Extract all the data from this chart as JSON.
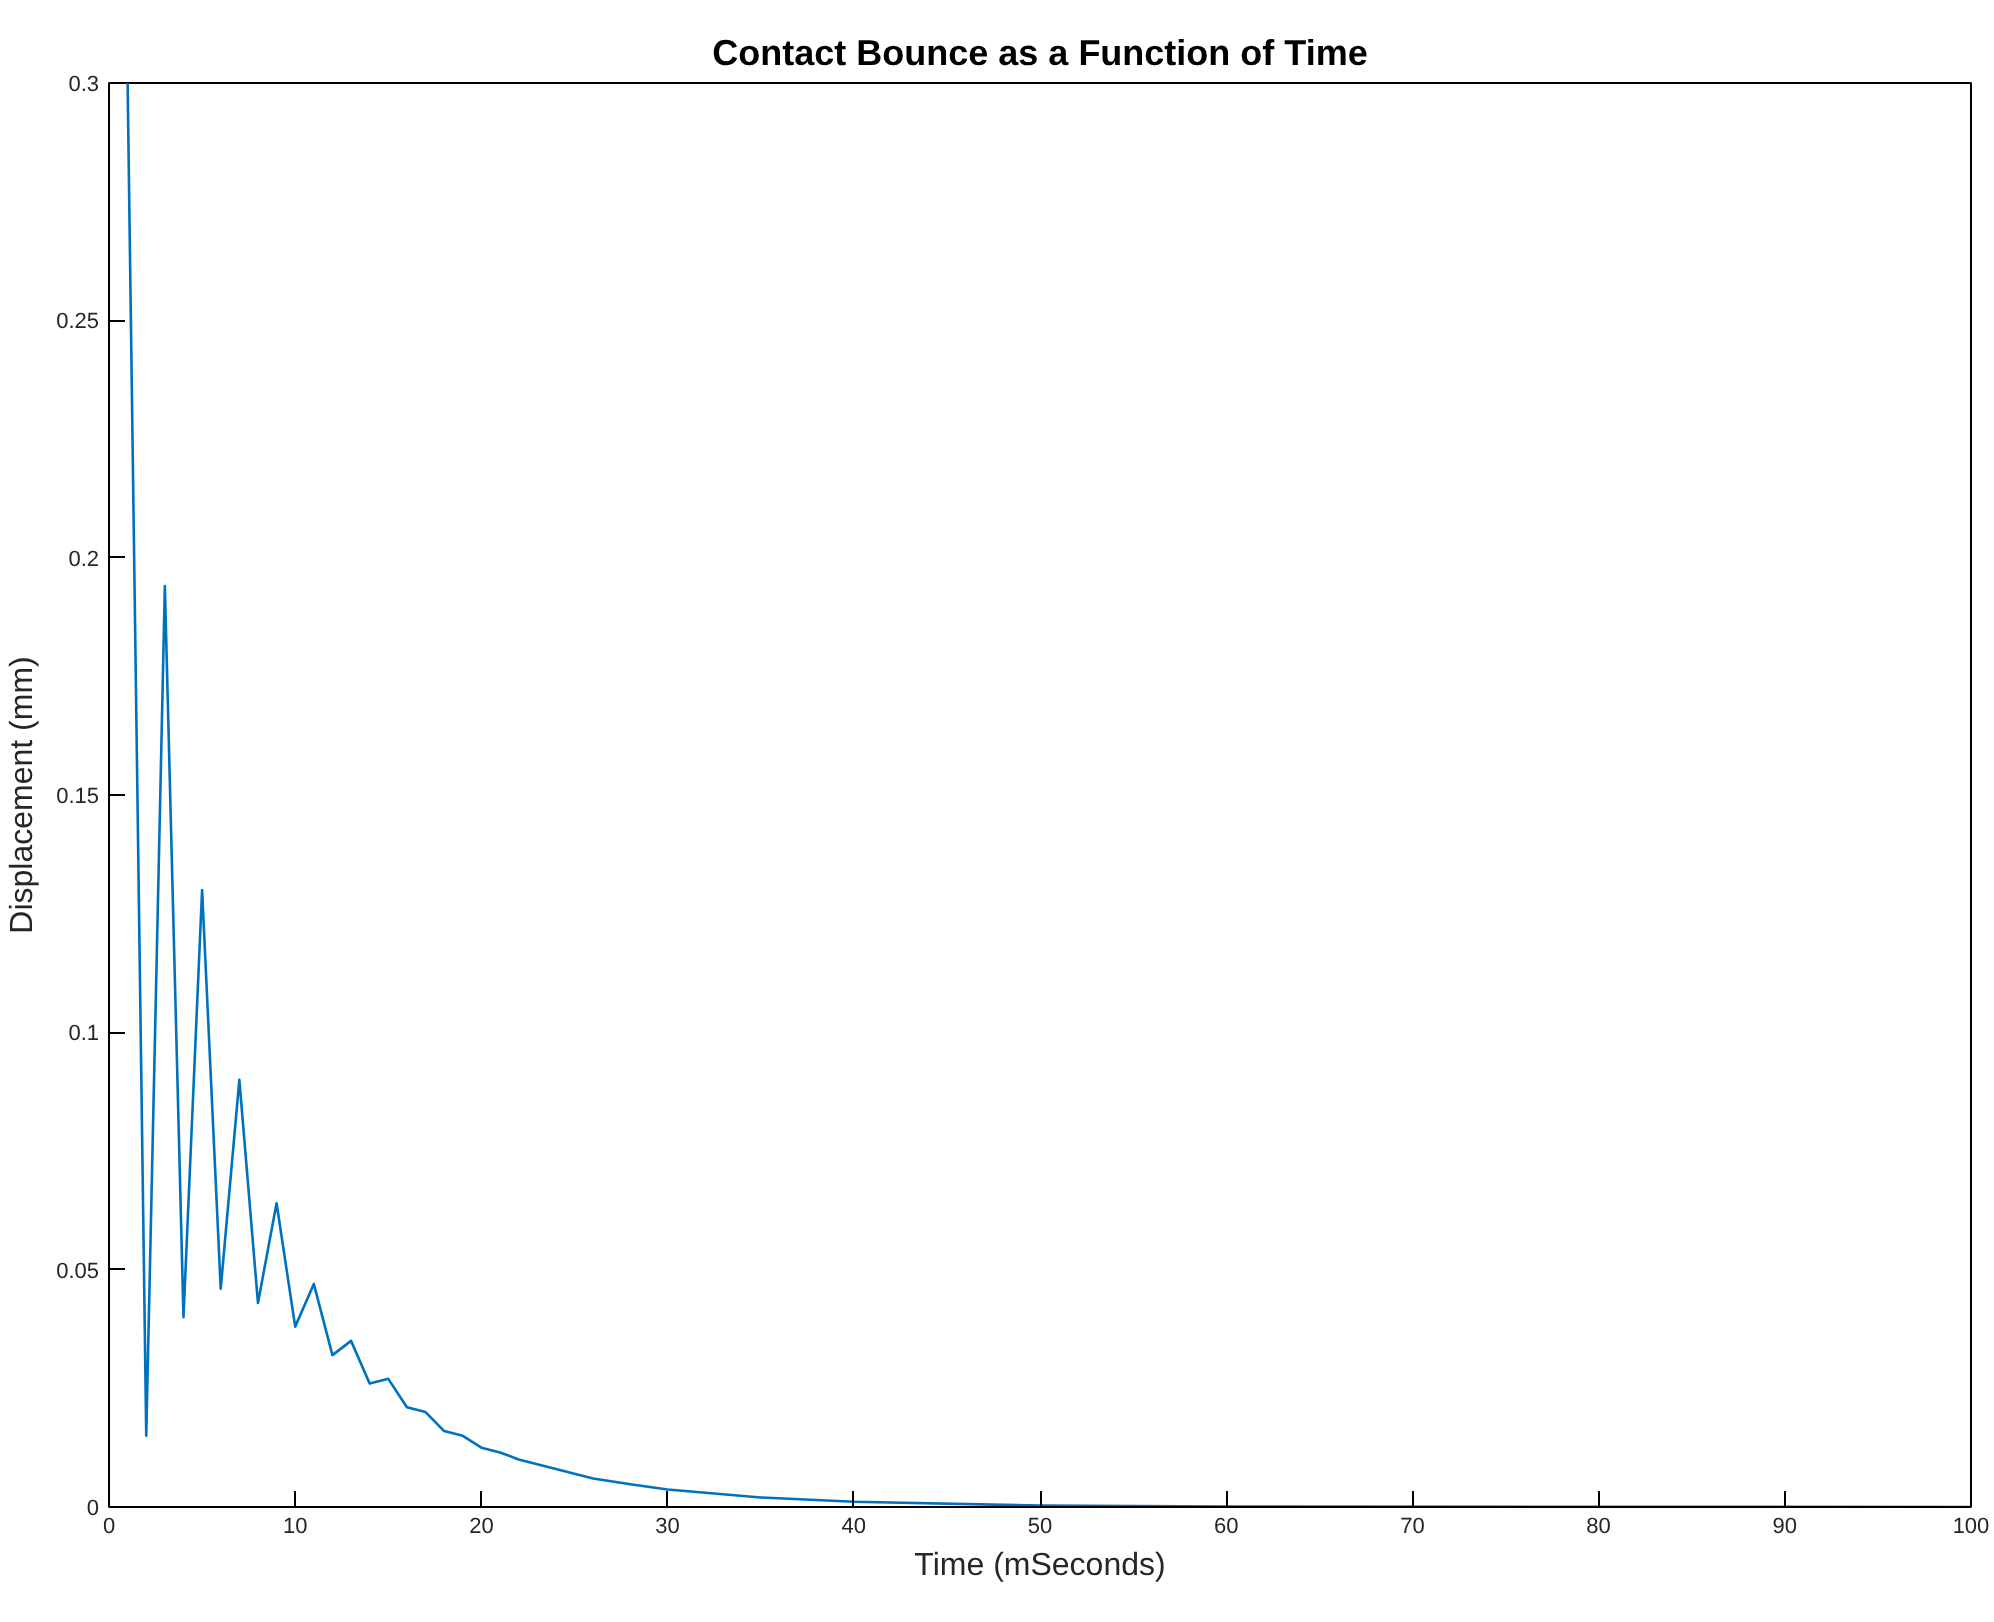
{
  "chart_data": {
    "type": "line",
    "title": "Contact Bounce as a Function of Time",
    "xlabel": "Time (mSeconds)",
    "ylabel": "Displacement (mm)",
    "x": [
      1,
      2,
      3,
      4,
      5,
      6,
      7,
      8,
      9,
      10,
      11,
      12,
      13,
      14,
      15,
      16,
      17,
      18,
      19,
      20,
      21,
      22,
      24,
      26,
      28,
      30,
      35,
      40,
      50,
      60,
      100
    ],
    "series": [
      {
        "color": "#0072bd",
        "values": [
          0.3,
          0.015,
          0.194,
          0.04,
          0.13,
          0.046,
          0.09,
          0.043,
          0.064,
          0.038,
          0.047,
          0.032,
          0.035,
          0.026,
          0.027,
          0.021,
          0.02,
          0.016,
          0.015,
          0.0125,
          0.0115,
          0.01,
          0.008,
          0.006,
          0.0048,
          0.0037,
          0.002,
          0.0011,
          0.0003,
          0.0001,
          0
        ]
      }
    ],
    "xlim": [
      0,
      100
    ],
    "ylim": [
      0,
      0.3
    ],
    "xticks": [
      0,
      10,
      20,
      30,
      40,
      50,
      60,
      70,
      80,
      90,
      100
    ],
    "yticks": [
      0,
      0.05,
      0.1,
      0.15,
      0.2,
      0.25,
      0.3
    ],
    "grid": false,
    "marker": "none",
    "line_style": "solid"
  }
}
